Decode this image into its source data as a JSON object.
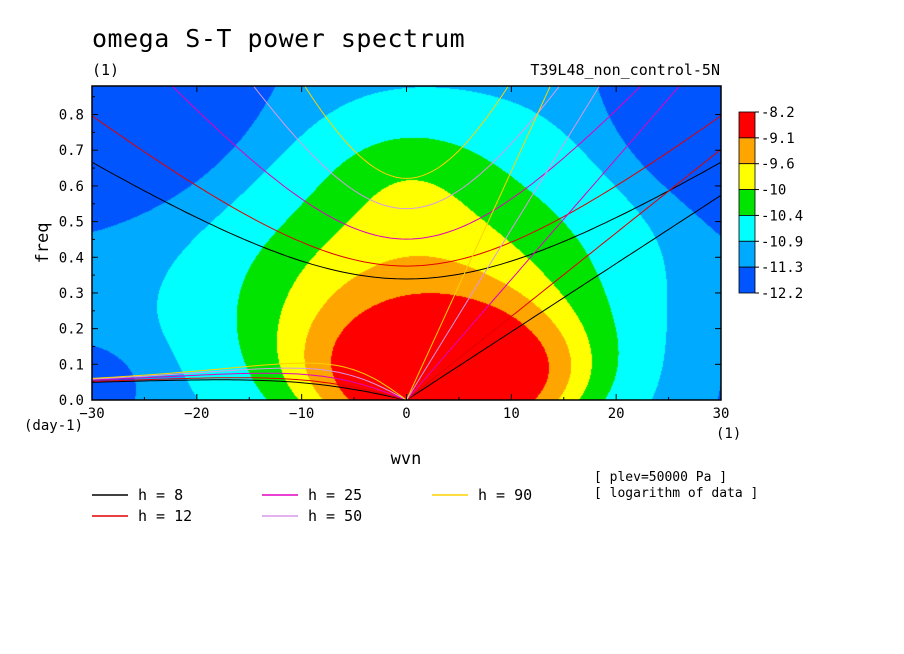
{
  "chart_data": {
    "type": "heatmap",
    "title": "omega S-T power spectrum",
    "subtitle_left": "(1)",
    "subtitle_right": "T39L48_non_control-5N",
    "xlabel": "wvn",
    "ylabel": "freq",
    "x_unit": "(1)",
    "y_unit": "(day-1)",
    "xlim": [
      -30,
      30
    ],
    "ylim": [
      0,
      0.88
    ],
    "x_ticks": [
      -30,
      -20,
      -10,
      0,
      10,
      20,
      30
    ],
    "x_tick_labels": [
      "−30",
      "−20",
      "−10",
      "0",
      "10",
      "20",
      "30"
    ],
    "y_ticks": [
      0.0,
      0.1,
      0.2,
      0.3,
      0.4,
      0.5,
      0.6,
      0.7,
      0.8
    ],
    "y_tick_labels": [
      "0.0",
      "0.1",
      "0.2",
      "0.3",
      "0.4",
      "0.5",
      "0.6",
      "0.7",
      "0.8"
    ],
    "colorbar": {
      "labels": [
        "-8.2",
        "-9.1",
        "-9.6",
        "-10",
        "-10.4",
        "-10.9",
        "-11.3",
        "-12.2"
      ],
      "colors": [
        "#ff0000",
        "#ffa500",
        "#ffff00",
        "#00e400",
        "#00ffff",
        "#00aaff",
        "#0055ff"
      ]
    },
    "contour_levels": [
      -9.1,
      -9.6,
      -10,
      -10.4,
      -10.9,
      -11.3
    ],
    "series": [
      {
        "name": "h =  8",
        "h": 8,
        "color": "#000000"
      },
      {
        "name": "h = 12",
        "h": 12,
        "color": "#e00000"
      },
      {
        "name": "h = 25",
        "h": 25,
        "color": "#e000c0"
      },
      {
        "name": "h = 50",
        "h": 50,
        "color": "#d898e8"
      },
      {
        "name": "h = 90",
        "h": 90,
        "color": "#ffd000"
      }
    ],
    "notes": [
      "[ plev=50000 Pa ]",
      "[ logarithm of data ]"
    ]
  }
}
